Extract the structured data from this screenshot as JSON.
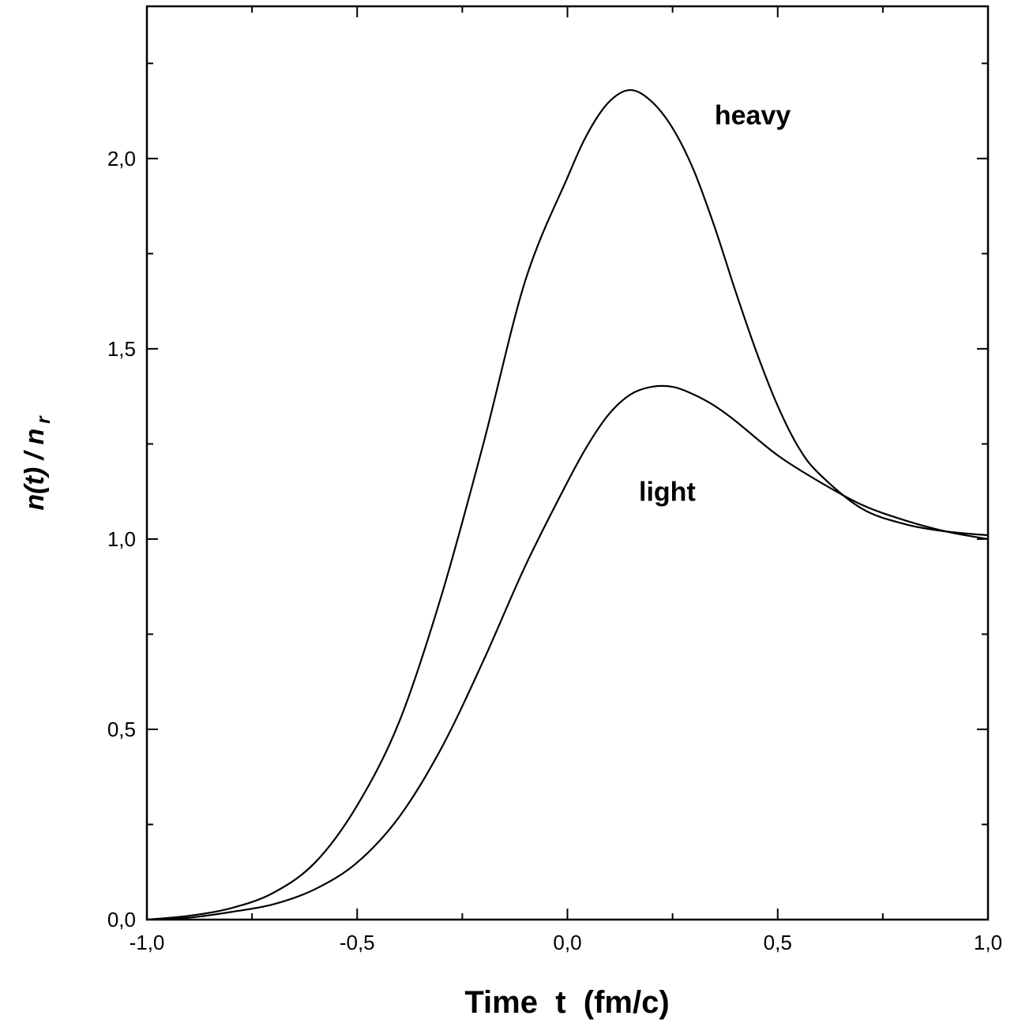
{
  "chart_data": {
    "type": "line",
    "title": "",
    "xlabel": "Time  t  (fm/c)",
    "ylabel": {
      "main": "n(t) / n",
      "sub": "r"
    },
    "xlim": [
      -1.0,
      1.0
    ],
    "ylim": [
      0.0,
      2.4
    ],
    "xticks": [
      -1.0,
      -0.5,
      0.0,
      0.5,
      1.0
    ],
    "xtick_labels": [
      "-1,0",
      "-0,5",
      "0,0",
      "0,5",
      "1,0"
    ],
    "yticks": [
      0.0,
      0.5,
      1.0,
      1.5,
      2.0
    ],
    "ytick_labels": [
      "0,0",
      "0,5",
      "1,0",
      "1,5",
      "2,0"
    ],
    "x_minor_step": 0.25,
    "y_minor_step": 0.25,
    "grid": false,
    "annotations": [
      {
        "text": "heavy",
        "x": 0.35,
        "y": 2.09
      },
      {
        "text": "light",
        "x": 0.17,
        "y": 1.1
      }
    ],
    "series": [
      {
        "x": [
          -1.0,
          -0.9,
          -0.8,
          -0.7,
          -0.6,
          -0.5,
          -0.4,
          -0.3,
          -0.2,
          -0.1,
          0.0,
          0.05,
          0.1,
          0.15,
          0.2,
          0.25,
          0.3,
          0.35,
          0.4,
          0.45,
          0.5,
          0.55,
          0.6,
          0.7,
          0.8,
          0.9,
          1.0
        ],
        "y": [
          0.0,
          0.01,
          0.03,
          0.07,
          0.15,
          0.3,
          0.52,
          0.85,
          1.25,
          1.68,
          1.95,
          2.07,
          2.15,
          2.18,
          2.15,
          2.08,
          1.97,
          1.82,
          1.65,
          1.49,
          1.35,
          1.24,
          1.17,
          1.08,
          1.04,
          1.02,
          1.01
        ]
      },
      {
        "x": [
          -1.0,
          -0.9,
          -0.8,
          -0.7,
          -0.6,
          -0.5,
          -0.4,
          -0.3,
          -0.2,
          -0.1,
          0.0,
          0.05,
          0.1,
          0.15,
          0.2,
          0.25,
          0.3,
          0.35,
          0.4,
          0.5,
          0.6,
          0.7,
          0.8,
          0.9,
          1.0
        ],
        "y": [
          0.0,
          0.005,
          0.02,
          0.04,
          0.08,
          0.15,
          0.27,
          0.45,
          0.68,
          0.93,
          1.15,
          1.25,
          1.33,
          1.38,
          1.4,
          1.4,
          1.38,
          1.35,
          1.31,
          1.22,
          1.15,
          1.09,
          1.05,
          1.02,
          1.0
        ]
      }
    ]
  }
}
